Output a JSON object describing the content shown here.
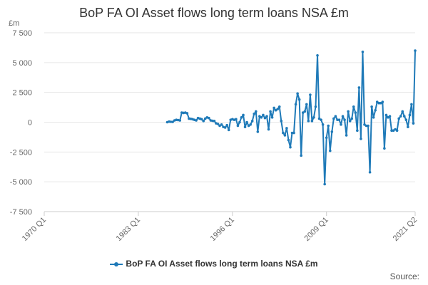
{
  "chart_data": {
    "type": "line",
    "title": "BoP FA OI Asset flows long term loans NSA £m",
    "y_unit": "£m",
    "xlabel": "",
    "ylabel": "",
    "ylim": [
      -7500,
      7500
    ],
    "y_ticks": [
      7500,
      5000,
      2500,
      0,
      -2500,
      -5000,
      -7500
    ],
    "y_tick_labels": [
      "7 500",
      "5 000",
      "2 500",
      "0",
      "-2 500",
      "-5 000",
      "-7 500"
    ],
    "x_ticks": [
      "1970 Q1",
      "1983 Q1",
      "1996 Q1",
      "2009 Q1",
      "2021 Q2"
    ],
    "grid": true,
    "legend_position": "bottom",
    "series": [
      {
        "name": "BoP FA OI Asset flows long term loans NSA £m",
        "color": "#1f7ab8",
        "x": [
          "1987 Q1",
          "1987 Q2",
          "1987 Q3",
          "1987 Q4",
          "1988 Q1",
          "1988 Q2",
          "1988 Q3",
          "1988 Q4",
          "1989 Q1",
          "1989 Q2",
          "1989 Q3",
          "1989 Q4",
          "1990 Q1",
          "1990 Q2",
          "1990 Q3",
          "1990 Q4",
          "1991 Q1",
          "1991 Q2",
          "1991 Q3",
          "1991 Q4",
          "1992 Q1",
          "1992 Q2",
          "1992 Q3",
          "1992 Q4",
          "1993 Q1",
          "1993 Q2",
          "1993 Q3",
          "1993 Q4",
          "1994 Q1",
          "1994 Q2",
          "1994 Q3",
          "1994 Q4",
          "1995 Q1",
          "1995 Q2",
          "1995 Q3",
          "1995 Q4",
          "1996 Q1",
          "1996 Q2",
          "1996 Q3",
          "1996 Q4",
          "1997 Q1",
          "1997 Q2",
          "1997 Q3",
          "1997 Q4",
          "1998 Q1",
          "1998 Q2",
          "1998 Q3",
          "1998 Q4",
          "1999 Q1",
          "1999 Q2",
          "1999 Q3",
          "1999 Q4",
          "2000 Q1",
          "2000 Q2",
          "2000 Q3",
          "2000 Q4",
          "2001 Q1",
          "2001 Q2",
          "2001 Q3",
          "2001 Q4",
          "2002 Q1",
          "2002 Q2",
          "2002 Q3",
          "2002 Q4",
          "2003 Q1",
          "2003 Q2",
          "2003 Q3",
          "2003 Q4",
          "2004 Q1",
          "2004 Q2",
          "2004 Q3",
          "2004 Q4",
          "2005 Q1",
          "2005 Q2",
          "2005 Q3",
          "2005 Q4",
          "2006 Q1",
          "2006 Q2",
          "2006 Q3",
          "2006 Q4",
          "2007 Q1",
          "2007 Q2",
          "2007 Q3",
          "2007 Q4",
          "2008 Q1",
          "2008 Q2",
          "2008 Q3",
          "2008 Q4",
          "2009 Q1",
          "2009 Q2",
          "2009 Q3",
          "2009 Q4",
          "2010 Q1",
          "2010 Q2",
          "2010 Q3",
          "2010 Q4",
          "2011 Q1",
          "2011 Q2",
          "2011 Q3",
          "2011 Q4",
          "2012 Q1",
          "2012 Q2",
          "2012 Q3",
          "2012 Q4",
          "2013 Q1",
          "2013 Q2",
          "2013 Q3",
          "2013 Q4",
          "2014 Q1",
          "2014 Q2",
          "2014 Q3",
          "2014 Q4",
          "2015 Q1",
          "2015 Q2",
          "2015 Q3",
          "2015 Q4",
          "2016 Q1",
          "2016 Q2",
          "2016 Q3",
          "2016 Q4",
          "2017 Q1",
          "2017 Q2",
          "2017 Q3",
          "2017 Q4",
          "2018 Q1",
          "2018 Q2",
          "2018 Q3",
          "2018 Q4",
          "2019 Q1",
          "2019 Q2",
          "2019 Q3",
          "2019 Q4",
          "2020 Q1",
          "2020 Q2",
          "2020 Q3",
          "2020 Q4",
          "2021 Q1",
          "2021 Q2"
        ],
        "values": [
          0,
          50,
          30,
          20,
          150,
          200,
          180,
          150,
          800,
          780,
          800,
          750,
          300,
          280,
          250,
          200,
          150,
          350,
          300,
          250,
          100,
          300,
          400,
          350,
          150,
          120,
          100,
          -100,
          -150,
          -300,
          -200,
          -400,
          -450,
          -250,
          -650,
          200,
          250,
          200,
          250,
          -300,
          0,
          400,
          600,
          -400,
          0,
          -300,
          -200,
          100,
          700,
          900,
          -800,
          500,
          400,
          600,
          350,
          500,
          -600,
          900,
          400,
          1200,
          1000,
          1100,
          1300,
          100,
          -900,
          -1100,
          -500,
          -1500,
          -2100,
          -900,
          -900,
          1500,
          2400,
          1900,
          -2800,
          800,
          900,
          1500,
          100,
          2300,
          100,
          400,
          1300,
          5600,
          300,
          200,
          -200,
          -5200,
          -1300,
          -300,
          -2400,
          -800,
          300,
          500,
          200,
          200,
          -200,
          500,
          200,
          -1100,
          900,
          100,
          300,
          1300,
          800,
          -700,
          2900,
          -1400,
          5900,
          -200,
          -300,
          -300,
          -4200,
          1300,
          400,
          1000,
          1700,
          1600,
          1600,
          1700,
          -2200,
          600,
          400,
          500,
          -700,
          -700,
          -600,
          -700,
          300,
          500,
          900,
          500,
          200,
          -400,
          600,
          1500,
          -100,
          6000
        ]
      }
    ]
  },
  "source_label": "Source:"
}
